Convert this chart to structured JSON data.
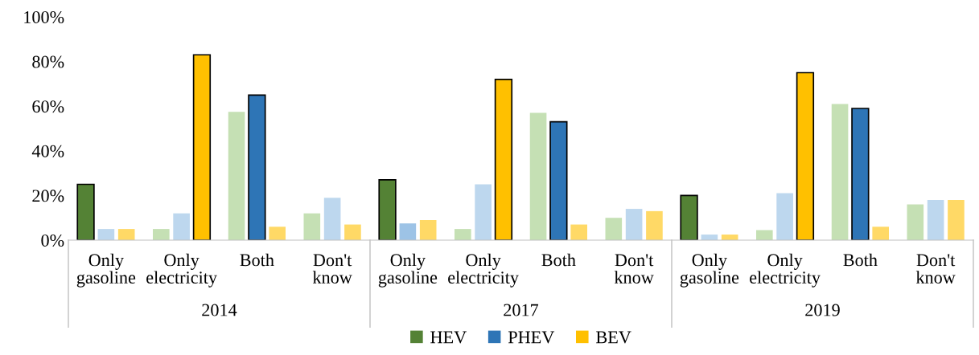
{
  "chart_data": {
    "type": "bar",
    "categories": [
      "Only\ngasoline",
      "Only\nelectricity",
      "Both",
      "Don't\nknow",
      "Only\ngasoline",
      "Only\nelectricity",
      "Both",
      "Don't\nknow",
      "Only\ngasoline",
      "Only\nelectricity",
      "Both",
      "Don't\nknow"
    ],
    "annotations": [
      "2014",
      "2017",
      "2019"
    ],
    "series": [
      {
        "name": "HEV",
        "color": "#548235",
        "values": [
          25,
          5,
          57.5,
          12,
          27,
          5,
          57,
          10,
          20,
          4.5,
          61,
          16
        ],
        "colors": [
          "#548235",
          "#c5e0b4",
          "#c5e0b4",
          "#c5e0b4",
          "#548235",
          "#c5e0b4",
          "#c5e0b4",
          "#c5e0b4",
          "#548235",
          "#c5e0b4",
          "#c5e0b4",
          "#c5e0b4"
        ]
      },
      {
        "name": "PHEV",
        "color": "#2e75b6",
        "values": [
          5,
          12,
          65,
          19,
          7.5,
          25,
          53,
          14,
          2.5,
          21,
          59,
          18
        ],
        "colors": [
          "#bdd7ee",
          "#bdd7ee",
          "#2e75b6",
          "#bdd7ee",
          "#9dc3e6",
          "#bdd7ee",
          "#2e75b6",
          "#bdd7ee",
          "#bdd7ee",
          "#bdd7ee",
          "#2e75b6",
          "#bdd7ee"
        ]
      },
      {
        "name": "BEV",
        "color": "#ffc000",
        "values": [
          5,
          83,
          6,
          7,
          9,
          72,
          7,
          13,
          2.5,
          75,
          6,
          18
        ],
        "colors": [
          "#ffd966",
          "#ffc000",
          "#ffd966",
          "#ffd966",
          "#ffd966",
          "#ffc000",
          "#ffd966",
          "#ffd966",
          "#ffd966",
          "#ffc000",
          "#ffd966",
          "#ffd966"
        ]
      }
    ],
    "ylim": [
      0,
      100
    ],
    "yticks": [
      {
        "value": 0,
        "label": "0%"
      },
      {
        "value": 20,
        "label": "20%"
      },
      {
        "value": 40,
        "label": "40%"
      },
      {
        "value": 60,
        "label": "60%"
      },
      {
        "value": 80,
        "label": "80%"
      },
      {
        "value": 100,
        "label": "100%"
      }
    ],
    "grid": false,
    "legend": "bottom"
  }
}
